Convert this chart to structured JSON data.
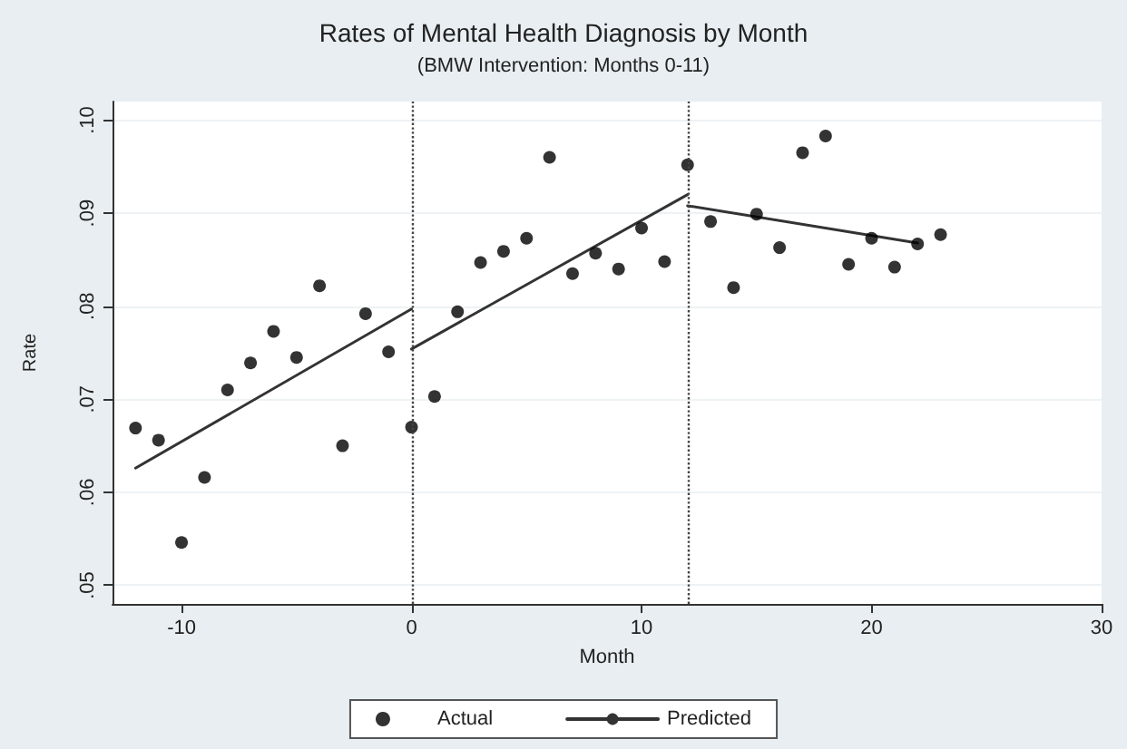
{
  "chart_data": {
    "type": "scatter",
    "title": "Rates of Mental Health Diagnosis by Month",
    "subtitle": "(BMW Intervention: Months 0-11)",
    "xlabel": "Month",
    "ylabel": "Rate",
    "series": [
      {
        "name": "Actual",
        "color": "#000000",
        "marker": "circle",
        "x": [
          -12,
          -11,
          -10,
          -9,
          -8,
          -7,
          -6,
          -5,
          -4,
          -3,
          -2,
          -1,
          0,
          1,
          2,
          3,
          4,
          5,
          6,
          7,
          8,
          9,
          10,
          11,
          12,
          13,
          14,
          15,
          16,
          17,
          18,
          19,
          20,
          21,
          22,
          23
        ],
        "values": [
          0.0669,
          0.0656,
          0.0546,
          0.0616,
          0.071,
          0.0739,
          0.0773,
          0.0745,
          0.0822,
          0.065,
          0.0792,
          0.0751,
          0.067,
          0.0703,
          0.0794,
          0.0847,
          0.0859,
          0.0873,
          0.096,
          0.0835,
          0.0857,
          0.084,
          0.0884,
          0.0848,
          0.0952,
          0.0891,
          0.082,
          0.0899,
          0.0863,
          0.0965,
          0.0983,
          0.0845,
          0.0873,
          0.0842,
          0.0867,
          0.0877
        ]
      },
      {
        "name": "Predicted",
        "type": "line",
        "color": "#333333",
        "marker": "none",
        "line_style": "solid",
        "x": [
          -12,
          0
        ],
        "values": [
          0.0626,
          0.0797
        ]
      },
      {
        "type": "line",
        "color": "#333333",
        "marker": "none",
        "line_style": "solid",
        "x": [
          0,
          12
        ],
        "values": [
          0.0754,
          0.092
        ]
      },
      {
        "type": "line",
        "color": "#333333",
        "marker": "none",
        "line_style": "solid",
        "x": [
          12,
          22
        ],
        "values": [
          0.0908,
          0.0868
        ]
      }
    ],
    "xlim": [
      -13,
      30
    ],
    "xticks": [
      -10,
      0,
      10,
      20,
      30
    ],
    "ylim": [
      0.048,
      0.102
    ],
    "yticks": [
      {
        "value": 0.05,
        "label": ".05"
      },
      {
        "value": 0.06,
        "label": ".06"
      },
      {
        "value": 0.07,
        "label": ".07"
      },
      {
        "value": 0.08,
        "label": ".08"
      },
      {
        "value": 0.09,
        "label": ".09"
      },
      {
        "value": 0.1,
        "label": ".10"
      }
    ],
    "ref_lines": [
      {
        "axis": "x",
        "value": 0,
        "line_style": "dotted",
        "color": "#444444"
      },
      {
        "axis": "x",
        "value": 12,
        "line_style": "dotted",
        "color": "#444444"
      }
    ],
    "grid": "y",
    "legend": "bottom"
  }
}
